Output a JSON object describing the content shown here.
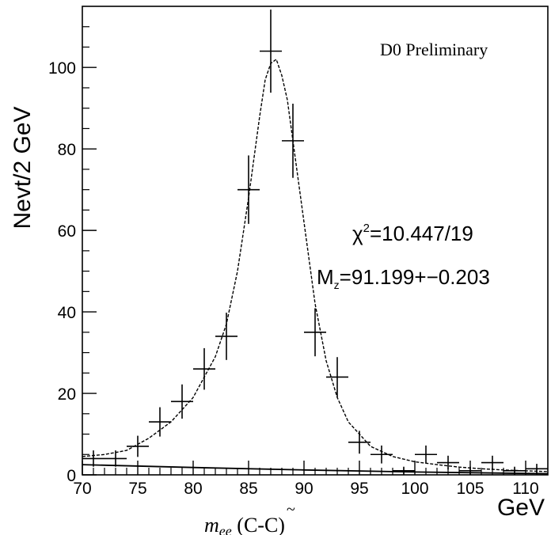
{
  "chart_data": {
    "type": "line",
    "ylabel": "Nevt/2 GeV",
    "xlabel": "GeV",
    "xlabel_secondary": "m_ee (C-C̃)",
    "xlabel_secondary_parts": {
      "main": "m",
      "sub": "ee",
      "paren_open": " (C-",
      "tilde_c": "C",
      "paren_close": ")"
    },
    "xlim": [
      70,
      112
    ],
    "ylim": [
      0,
      115
    ],
    "x_ticks": [
      70,
      75,
      80,
      85,
      90,
      95,
      100,
      105,
      110
    ],
    "y_ticks": [
      0,
      20,
      40,
      60,
      80,
      100
    ],
    "x_tick_labels": [
      "70",
      "75",
      "80",
      "85",
      "90",
      "95",
      "100",
      "105",
      "110"
    ],
    "y_tick_labels": [
      "0",
      "20",
      "40",
      "60",
      "80",
      "100"
    ],
    "annotations": {
      "experiment": "D0 Preliminary",
      "chi2_symbol": "χ",
      "chi2_sup": "2",
      "chi2_value": "=10.447/19",
      "mz_symbol": "M",
      "mz_sub": "z",
      "mz_value": "=91.199+−0.203"
    },
    "series": [
      {
        "style": "crosses",
        "x": [
          71,
          73,
          75,
          77,
          79,
          81,
          83,
          85,
          87,
          89,
          91,
          93,
          95,
          97,
          99,
          101,
          103,
          105,
          107,
          109,
          111
        ],
        "y": [
          4,
          4,
          7,
          13,
          18,
          26,
          34,
          70,
          104,
          82,
          35,
          24,
          8,
          5,
          1,
          5,
          3,
          1,
          3,
          1,
          1.5
        ],
        "yerr": [
          2.0,
          2.0,
          2.6,
          3.6,
          4.2,
          5.1,
          5.8,
          8.4,
          10.2,
          9.1,
          5.9,
          4.9,
          2.8,
          2.2,
          1.0,
          2.2,
          1.7,
          1.0,
          1.7,
          1.0,
          1.2
        ]
      },
      {
        "style": "dashed-fit",
        "x": [
          70,
          72,
          74,
          76,
          78,
          80,
          82,
          83,
          84,
          85,
          86,
          86.5,
          87,
          87.5,
          88,
          88.5,
          89,
          90,
          91,
          92,
          93,
          94,
          95,
          96,
          98,
          100,
          102,
          104,
          106,
          108,
          110,
          112
        ],
        "y": [
          4.5,
          5,
          6,
          9,
          13,
          19,
          29,
          37,
          50,
          68,
          88,
          97,
          101,
          102,
          98,
          92,
          82,
          62,
          42,
          28,
          19,
          13,
          10,
          7,
          4.5,
          3.2,
          2.5,
          1.9,
          1.5,
          1.2,
          1,
          0.8
        ]
      },
      {
        "style": "solid-background",
        "x": [
          70,
          80,
          90,
          100,
          112
        ],
        "y": [
          2.5,
          1.8,
          1.2,
          0.7,
          0.3
        ]
      }
    ]
  }
}
